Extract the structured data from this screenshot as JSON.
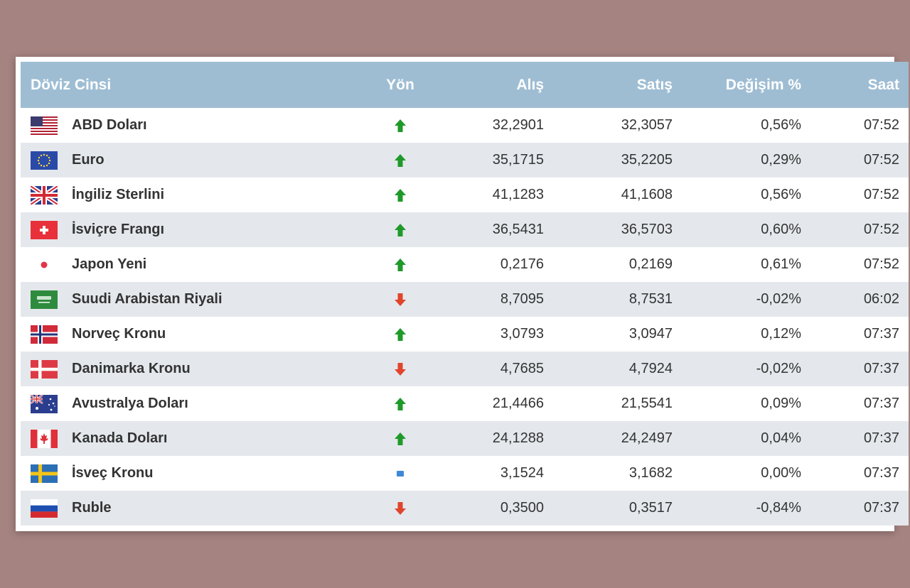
{
  "table": {
    "headers": {
      "name": "Döviz Cinsi",
      "direction": "Yön",
      "buy": "Alış",
      "sell": "Satış",
      "change": "Değişim %",
      "time": "Saat"
    },
    "rows": [
      {
        "name": "ABD Doları",
        "flag": "us-flag-icon",
        "direction": "up",
        "buy": "32,2901",
        "sell": "32,3057",
        "change": "0,56%",
        "time": "07:52"
      },
      {
        "name": "Euro",
        "flag": "eu-flag-icon",
        "direction": "up",
        "buy": "35,1715",
        "sell": "35,2205",
        "change": "0,29%",
        "time": "07:52"
      },
      {
        "name": "İngiliz Sterlini",
        "flag": "uk-flag-icon",
        "direction": "up",
        "buy": "41,1283",
        "sell": "41,1608",
        "change": "0,56%",
        "time": "07:52"
      },
      {
        "name": "İsviçre Frangı",
        "flag": "swiss-flag-icon",
        "direction": "up",
        "buy": "36,5431",
        "sell": "36,5703",
        "change": "0,60%",
        "time": "07:52"
      },
      {
        "name": "Japon Yeni",
        "flag": "japan-flag-icon",
        "direction": "up",
        "buy": "0,2176",
        "sell": "0,2169",
        "change": "0,61%",
        "time": "07:52"
      },
      {
        "name": "Suudi Arabistan Riyali",
        "flag": "saudi-flag-icon",
        "direction": "down",
        "buy": "8,7095",
        "sell": "8,7531",
        "change": "-0,02%",
        "time": "06:02"
      },
      {
        "name": "Norveç Kronu",
        "flag": "norway-flag-icon",
        "direction": "up",
        "buy": "3,0793",
        "sell": "3,0947",
        "change": "0,12%",
        "time": "07:37"
      },
      {
        "name": "Danimarka Kronu",
        "flag": "denmark-flag-icon",
        "direction": "down",
        "buy": "4,7685",
        "sell": "4,7924",
        "change": "-0,02%",
        "time": "07:37"
      },
      {
        "name": "Avustralya Doları",
        "flag": "australia-flag-icon",
        "direction": "up",
        "buy": "21,4466",
        "sell": "21,5541",
        "change": "0,09%",
        "time": "07:37"
      },
      {
        "name": "Kanada Doları",
        "flag": "canada-flag-icon",
        "direction": "up",
        "buy": "24,1288",
        "sell": "24,2497",
        "change": "0,04%",
        "time": "07:37"
      },
      {
        "name": "İsveç Kronu",
        "flag": "sweden-flag-icon",
        "direction": "flat",
        "buy": "3,1524",
        "sell": "3,1682",
        "change": "0,00%",
        "time": "07:37"
      },
      {
        "name": "Ruble",
        "flag": "russia-flag-icon",
        "direction": "down",
        "buy": "0,3500",
        "sell": "0,3517",
        "change": "-0,84%",
        "time": "07:37"
      }
    ]
  },
  "colors": {
    "background": "#a58381",
    "header": "#9ebdd3",
    "row_alt": "#e4e8ec",
    "up": "#1f9a2a",
    "down": "#e0452c",
    "flat": "#3f88d8"
  }
}
